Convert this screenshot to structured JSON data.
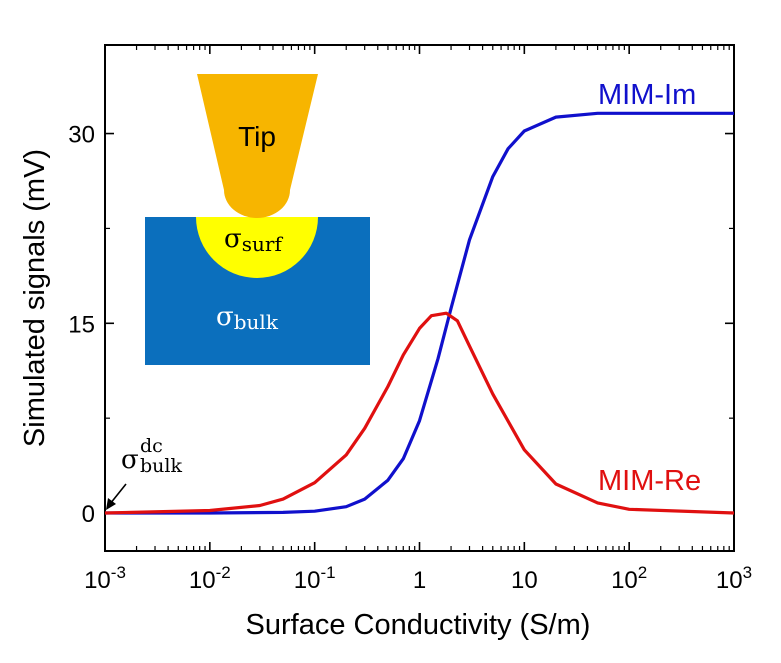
{
  "chart_data": {
    "type": "line",
    "xlabel": "Surface Conductivity (S/m)",
    "ylabel": "Simulated signals (mV)",
    "xscale": "log",
    "xlim": [
      0.001,
      1000
    ],
    "ylim": [
      -3,
      37
    ],
    "grid": false,
    "x_ticks": [
      {
        "base": "10",
        "exp": "-3",
        "value": 0.001
      },
      {
        "base": "10",
        "exp": "-2",
        "value": 0.01
      },
      {
        "base": "10",
        "exp": "-1",
        "value": 0.1
      },
      {
        "base": "1",
        "exp": "",
        "value": 1
      },
      {
        "base": "10",
        "exp": "",
        "value": 10
      },
      {
        "base": "10",
        "exp": "2",
        "value": 100
      },
      {
        "base": "10",
        "exp": "3",
        "value": 1000
      }
    ],
    "y_ticks": [
      {
        "label": "0",
        "value": 0
      },
      {
        "label": "15",
        "value": 15
      },
      {
        "label": "30",
        "value": 30
      }
    ],
    "series": [
      {
        "name": "MIM-Im",
        "color": "#1010cc",
        "x": [
          0.001,
          0.01,
          0.05,
          0.1,
          0.2,
          0.3,
          0.5,
          0.7,
          1.0,
          1.5,
          2.0,
          3.0,
          5.0,
          7.0,
          10,
          20,
          50,
          100,
          1000
        ],
        "y": [
          0,
          0,
          0.05,
          0.15,
          0.5,
          1.1,
          2.6,
          4.3,
          7.3,
          12.2,
          16.2,
          21.6,
          26.6,
          28.8,
          30.2,
          31.3,
          31.6,
          31.6,
          31.6
        ]
      },
      {
        "name": "MIM-Re",
        "color": "#e01010",
        "x": [
          0.001,
          0.01,
          0.03,
          0.05,
          0.1,
          0.2,
          0.3,
          0.5,
          0.7,
          1.0,
          1.3,
          1.8,
          2.3,
          3.0,
          5.0,
          10,
          20,
          50,
          100,
          1000
        ],
        "y": [
          0,
          0.2,
          0.6,
          1.1,
          2.4,
          4.6,
          6.7,
          10.0,
          12.5,
          14.6,
          15.6,
          15.8,
          15.2,
          13.2,
          9.4,
          5.0,
          2.3,
          0.8,
          0.3,
          0
        ]
      }
    ],
    "annotations": {
      "tip_label": "Tip",
      "surf_sigma": "σ",
      "surf_sub": "surf",
      "bulk_sigma": "σ",
      "bulk_sub": "bulk",
      "dc_sigma": "σ",
      "dc_sup": "dc",
      "dc_sub": "bulk"
    },
    "inset_colors": {
      "tip": "#f7b500",
      "surface": "#ffff00",
      "bulk": "#0b6fbd"
    }
  }
}
